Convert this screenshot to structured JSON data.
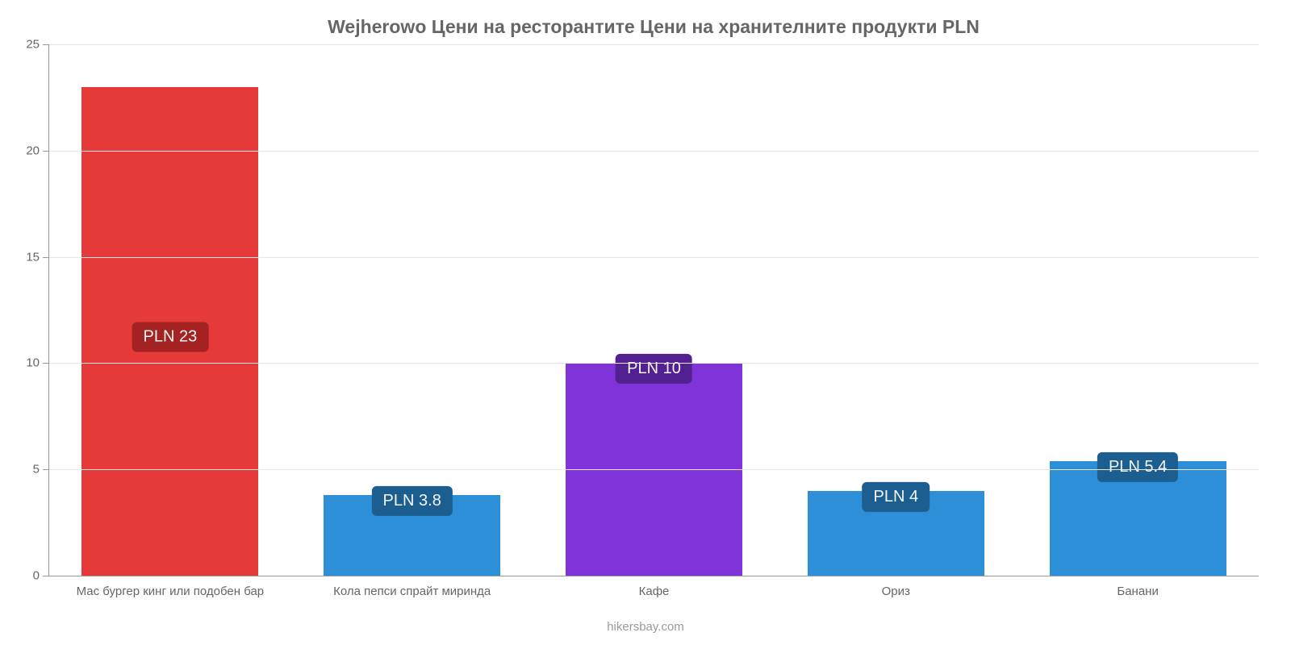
{
  "chart": {
    "type": "bar",
    "title": "Wejherowo Цени на ресторантите Цени на хранителните продукти PLN",
    "title_fontsize": 23,
    "title_color": "#666666",
    "attribution": "hikersbay.com",
    "attribution_color": "#999999",
    "background_color": "#ffffff",
    "grid_color": "#e6e6e6",
    "axis_color": "#999999",
    "tick_label_color": "#666666",
    "tick_label_fontsize": 15,
    "ylim_min": 0,
    "ylim_max": 25,
    "ytick_step": 5,
    "yticks": [
      0,
      5,
      10,
      15,
      20,
      25
    ],
    "bar_width_pct": 73,
    "value_label_fontsize": 20,
    "value_label_color": "#f5f5f5",
    "categories": [
      "Мас бургер кинг или подобен бар",
      "Кола пепси спрайт миринда",
      "Кафе",
      "Ориз",
      "Банани"
    ],
    "values": [
      23,
      3.8,
      10,
      4,
      5.4
    ],
    "value_labels": [
      "PLN 23",
      "PLN 3.8",
      "PLN 10",
      "PLN 4",
      "PLN 5.4"
    ],
    "bar_colors": [
      "#e63939",
      "#2e8fd9",
      "#7f33d9",
      "#2e8fd9",
      "#2e8fd9"
    ],
    "badge_colors": [
      "#a52222",
      "#1b5e8f",
      "#532091",
      "#1b5e8f",
      "#1b5e8f"
    ]
  }
}
